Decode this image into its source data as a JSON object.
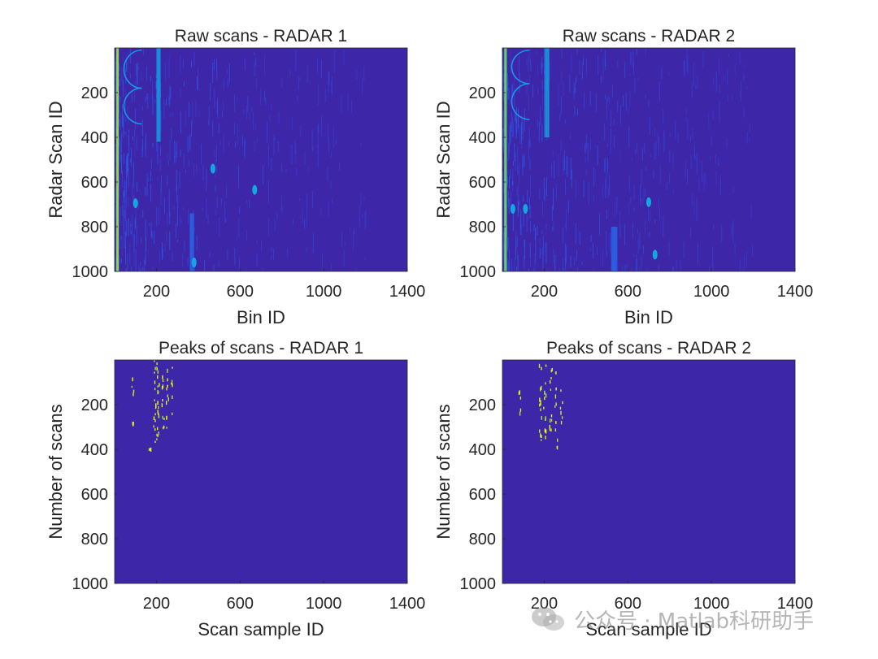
{
  "figure": {
    "background": "#ffffff",
    "plot_background": "#3e26a8",
    "watermark_text": "公众号 · Matlab科研助手"
  },
  "chart_data": [
    {
      "id": "raw-radar-1",
      "type": "heatmap",
      "title": "Raw scans - RADAR 1",
      "xlabel": "Bin ID",
      "ylabel": "Radar Scan ID",
      "xlim": [
        0,
        1400
      ],
      "ylim": [
        1000,
        0
      ],
      "xticks": [
        200,
        600,
        1000,
        1400
      ],
      "yticks": [
        200,
        400,
        600,
        800,
        1000
      ],
      "colormap": "parula",
      "features": {
        "bright_bands": [
          {
            "x": 8,
            "width": 10,
            "y0": 0,
            "y1": 1000,
            "intensity": 0.95
          },
          {
            "x": 200,
            "width": 20,
            "y0": 0,
            "y1": 420,
            "intensity": 0.5
          },
          {
            "x": 360,
            "width": 20,
            "y0": 740,
            "y1": 1000,
            "intensity": 0.4
          }
        ],
        "arcs": [
          {
            "x": 130,
            "y0": 10,
            "y1": 180
          },
          {
            "x": 130,
            "y0": 180,
            "y1": 340
          }
        ],
        "spots": [
          {
            "x": 100,
            "y": 695
          },
          {
            "x": 670,
            "y": 635
          },
          {
            "x": 470,
            "y": 540
          },
          {
            "x": 380,
            "y": 960
          }
        ]
      }
    },
    {
      "id": "raw-radar-2",
      "type": "heatmap",
      "title": "Raw scans - RADAR 2",
      "xlabel": "Bin ID",
      "ylabel": "Radar Scan ID",
      "xlim": [
        0,
        1400
      ],
      "ylim": [
        1000,
        0
      ],
      "xticks": [
        200,
        600,
        1000,
        1400
      ],
      "yticks": [
        200,
        400,
        600,
        800,
        1000
      ],
      "colormap": "parula",
      "features": {
        "bright_bands": [
          {
            "x": 8,
            "width": 12,
            "y0": 0,
            "y1": 1000,
            "intensity": 0.95
          },
          {
            "x": 200,
            "width": 24,
            "y0": 0,
            "y1": 400,
            "intensity": 0.55
          },
          {
            "x": 520,
            "width": 30,
            "y0": 800,
            "y1": 1000,
            "intensity": 0.35
          }
        ],
        "arcs": [
          {
            "x": 130,
            "y0": 10,
            "y1": 160
          },
          {
            "x": 130,
            "y0": 160,
            "y1": 320
          }
        ],
        "spots": [
          {
            "x": 50,
            "y": 720
          },
          {
            "x": 110,
            "y": 720
          },
          {
            "x": 700,
            "y": 690
          },
          {
            "x": 730,
            "y": 925
          }
        ]
      }
    },
    {
      "id": "peaks-radar-1",
      "type": "heatmap",
      "title": "Peaks of scans - RADAR 1",
      "xlabel": "Scan sample ID",
      "ylabel": "Number of scans",
      "xlim": [
        0,
        1400
      ],
      "ylim": [
        1000,
        0
      ],
      "xticks": [
        200,
        600,
        1000,
        1400
      ],
      "yticks": [
        200,
        400,
        600,
        800,
        1000
      ],
      "colormap": "parula",
      "peak_columns": [
        {
          "x": 85,
          "y0": 70,
          "y1": 150,
          "density": 0.3
        },
        {
          "x": 90,
          "y0": 270,
          "y1": 285,
          "density": 0.5
        },
        {
          "x": 165,
          "y0": 380,
          "y1": 395,
          "density": 0.5
        },
        {
          "x": 190,
          "y0": 0,
          "y1": 390,
          "density": 0.3
        },
        {
          "x": 205,
          "y0": 0,
          "y1": 360,
          "density": 0.5
        },
        {
          "x": 230,
          "y0": 0,
          "y1": 330,
          "density": 0.25
        },
        {
          "x": 250,
          "y0": 20,
          "y1": 350,
          "density": 0.25
        },
        {
          "x": 270,
          "y0": 30,
          "y1": 320,
          "density": 0.15
        }
      ]
    },
    {
      "id": "peaks-radar-2",
      "type": "heatmap",
      "title": "Peaks of scans - RADAR 2",
      "xlabel": "Scan sample ID",
      "ylabel": "Number of scans",
      "xlim": [
        0,
        1400
      ],
      "ylim": [
        1000,
        0
      ],
      "xticks": [
        200,
        600,
        1000,
        1400
      ],
      "yticks": [
        200,
        400,
        600,
        800,
        1000
      ],
      "colormap": "parula",
      "peak_columns": [
        {
          "x": 80,
          "y0": 90,
          "y1": 260,
          "density": 0.25
        },
        {
          "x": 180,
          "y0": 0,
          "y1": 400,
          "density": 0.3
        },
        {
          "x": 200,
          "y0": 0,
          "y1": 360,
          "density": 0.3
        },
        {
          "x": 230,
          "y0": 20,
          "y1": 380,
          "density": 0.25
        },
        {
          "x": 255,
          "y0": 30,
          "y1": 390,
          "density": 0.25
        },
        {
          "x": 280,
          "y0": 120,
          "y1": 360,
          "density": 0.15
        }
      ]
    }
  ]
}
